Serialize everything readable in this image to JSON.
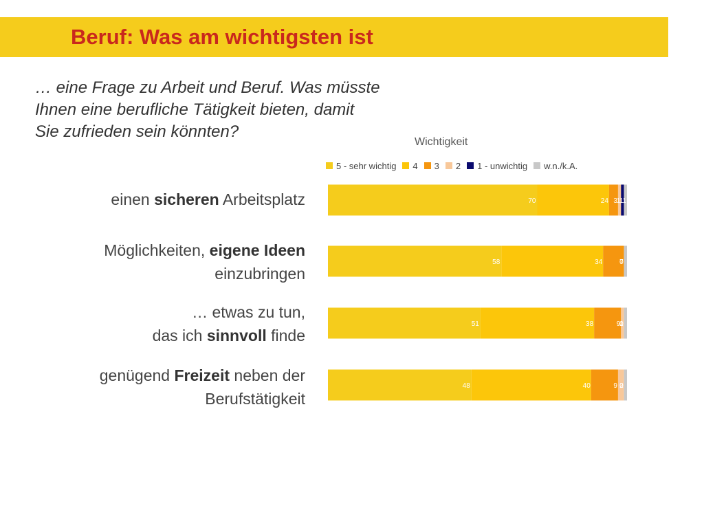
{
  "header": {
    "title": "Beruf: Was am wichtigsten ist"
  },
  "question": [
    "… eine Frage zu Arbeit und Beruf. Was müsste",
    "Ihnen eine berufliche Tätigkeit bieten, damit",
    "Sie zufrieden sein könnten?"
  ],
  "rows": [
    {
      "parts": [
        {
          "text": "einen ",
          "bold": false
        },
        {
          "text": "sicheren",
          "bold": true
        },
        {
          "text": " Arbeitsplatz",
          "bold": false
        }
      ]
    },
    {
      "parts": [
        {
          "text": "Möglichkeiten, ",
          "bold": false
        },
        {
          "text": "eigene Ideen",
          "bold": true
        },
        {
          "text": "\neinzubringen",
          "bold": false
        }
      ]
    },
    {
      "parts": [
        {
          "text": "… etwas zu tun,\ndas ich ",
          "bold": false
        },
        {
          "text": "sinnvoll",
          "bold": true
        },
        {
          "text": " finde",
          "bold": false
        }
      ]
    },
    {
      "parts": [
        {
          "text": "genügend ",
          "bold": false
        },
        {
          "text": "Freizeit",
          "bold": true
        },
        {
          "text": " neben der\nBerufstätigkeit",
          "bold": false
        }
      ]
    }
  ],
  "chart_data": {
    "type": "bar",
    "orientation": "horizontal",
    "stacked": true,
    "title": "Wichtigkeit",
    "legend_position": "top",
    "xlim": [
      0,
      100
    ],
    "categories": [
      "einen sicheren Arbeitsplatz",
      "Möglichkeiten, eigene Ideen einzubringen",
      "… etwas zu tun, das ich sinnvoll finde",
      "genügend Freizeit neben der Berufstätigkeit"
    ],
    "series": [
      {
        "name": "5 - sehr wichtig",
        "color": "#f5cc1c",
        "values": [
          70,
          58,
          51,
          48
        ]
      },
      {
        "name": "4",
        "color": "#fcc60a",
        "values": [
          24,
          34,
          38,
          40
        ]
      },
      {
        "name": "3",
        "color": "#f5960f",
        "values": [
          3,
          7,
          9,
          9
        ]
      },
      {
        "name": "2",
        "color": "#f8c89a",
        "values": [
          1,
          0,
          1,
          2
        ]
      },
      {
        "name": "1 - unwichtig",
        "color": "#0a0a6e",
        "values": [
          1,
          0,
          0,
          0
        ]
      },
      {
        "name": "w.n./k.A.",
        "color": "#c8c8c8",
        "values": [
          1,
          1,
          1,
          1
        ]
      }
    ],
    "data_labels": [
      [
        "70",
        "24",
        "3",
        "1",
        "1",
        "1"
      ],
      [
        "58",
        "34",
        "7",
        "0",
        "",
        ""
      ],
      [
        "51",
        "38",
        "9",
        "1",
        "0",
        ""
      ],
      [
        "48",
        "40",
        "9",
        "2",
        "0",
        ""
      ]
    ]
  }
}
